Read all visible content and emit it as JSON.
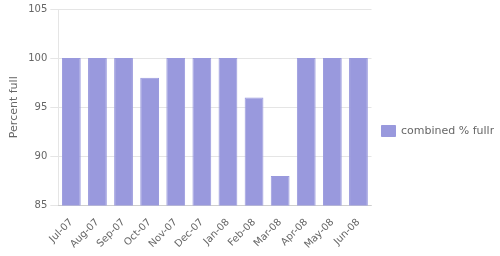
{
  "chart_data": {
    "type": "bar",
    "categories": [
      "Jul-07",
      "Aug-07",
      "Sep-07",
      "Oct-07",
      "Nov-07",
      "Dec-07",
      "Jan-08",
      "Feb-08",
      "Mar-08",
      "Apr-08",
      "May-08",
      "Jun-08"
    ],
    "series": [
      {
        "name": "combined % fullness",
        "color": "#9999dd",
        "values": [
          100,
          100,
          100,
          98,
          100,
          100,
          100,
          96,
          88,
          100,
          100,
          100
        ]
      }
    ],
    "ylabel": "Percent full",
    "ylim": [
      85,
      105
    ],
    "yticks": [
      85,
      90,
      95,
      100,
      105
    ],
    "grid": true,
    "legend": "right"
  }
}
